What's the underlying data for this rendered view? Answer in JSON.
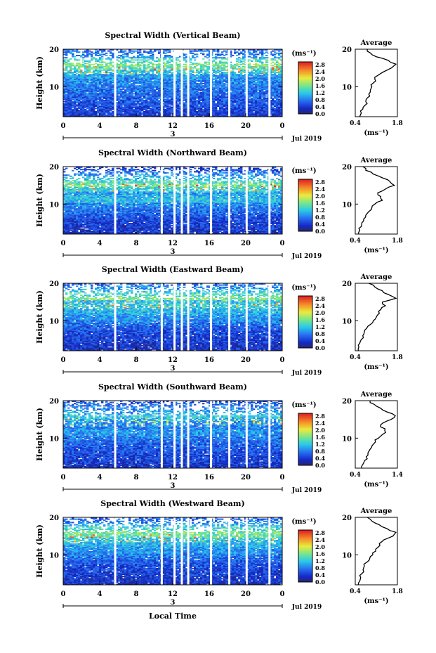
{
  "figure": {
    "xlabel": "Local Time",
    "ylabel": "Height (km)",
    "date_label": "Jul 2019",
    "day_label": "3",
    "x_ticks": [
      "0",
      "4",
      "8",
      "12",
      "16",
      "20",
      "0"
    ],
    "y_ticks": [
      "20",
      "10"
    ],
    "colorbar_unit": "(ms⁻¹)",
    "colorbar_ticks": [
      "2.8",
      "2.4",
      "2.0",
      "1.6",
      "1.2",
      "0.8",
      "0.4",
      "0.0"
    ],
    "avg_title": "Average",
    "avg_xlabel": "(ms⁻¹)"
  },
  "chart_data": [
    {
      "type": "heatmap",
      "title": "Spectral Width (Vertical Beam)",
      "xlabel": "Local Time",
      "ylabel": "Height (km)",
      "xlim": [
        0,
        24
      ],
      "ylim": [
        2,
        20
      ],
      "color_range": [
        0.0,
        2.8
      ],
      "profile": {
        "title": "Average",
        "xlim": [
          0.4,
          1.8
        ],
        "x_ticks": [
          "0.4",
          "1.8"
        ],
        "height": [
          2,
          3,
          4,
          5,
          6,
          7,
          8,
          9,
          10,
          11,
          12,
          13,
          14,
          15,
          16,
          17,
          18,
          19,
          20
        ],
        "values": [
          0.55,
          0.6,
          0.65,
          0.72,
          0.75,
          0.8,
          0.85,
          0.9,
          0.95,
          1.0,
          1.05,
          1.15,
          1.35,
          1.6,
          1.75,
          1.5,
          1.1,
          0.9,
          0.8
        ]
      }
    },
    {
      "type": "heatmap",
      "title": "Spectral Width (Northward Beam)",
      "xlabel": "Local Time",
      "ylabel": "Height (km)",
      "xlim": [
        0,
        24
      ],
      "ylim": [
        2,
        20
      ],
      "color_range": [
        0.0,
        2.8
      ],
      "profile": {
        "title": "Average",
        "xlim": [
          0.4,
          1.8
        ],
        "x_ticks": [
          "0.4",
          "1.8"
        ],
        "height": [
          2,
          3,
          4,
          5,
          6,
          7,
          8,
          9,
          10,
          11,
          12,
          13,
          14,
          15,
          16,
          17,
          18,
          19,
          20
        ],
        "values": [
          0.5,
          0.55,
          0.6,
          0.62,
          0.68,
          0.75,
          0.85,
          0.95,
          1.05,
          1.3,
          1.25,
          1.15,
          1.4,
          1.7,
          1.55,
          1.3,
          1.0,
          0.75,
          0.65
        ]
      }
    },
    {
      "type": "heatmap",
      "title": "Spectral Width (Eastward Beam)",
      "xlabel": "Local Time",
      "ylabel": "Height (km)",
      "xlim": [
        0,
        24
      ],
      "ylim": [
        2,
        20
      ],
      "color_range": [
        0.0,
        2.8
      ],
      "profile": {
        "title": "Average",
        "xlim": [
          0.4,
          1.8
        ],
        "x_ticks": [
          "0.4",
          "1.8"
        ],
        "height": [
          2,
          3,
          4,
          5,
          6,
          7,
          8,
          9,
          10,
          11,
          12,
          13,
          14,
          15,
          16,
          17,
          18,
          19,
          20
        ],
        "values": [
          0.5,
          0.52,
          0.55,
          0.6,
          0.65,
          0.7,
          0.78,
          0.9,
          1.0,
          1.1,
          1.2,
          1.25,
          1.4,
          1.3,
          1.75,
          1.5,
          1.3,
          1.05,
          0.85
        ]
      }
    },
    {
      "type": "heatmap",
      "title": "Spectral Width (Southward Beam)",
      "xlabel": "Local Time",
      "ylabel": "Height (km)",
      "xlim": [
        0,
        24
      ],
      "ylim": [
        2,
        20
      ],
      "color_range": [
        0.0,
        2.8
      ],
      "profile": {
        "title": "Average",
        "xlim": [
          0.4,
          1.4
        ],
        "x_ticks": [
          "0.4",
          "1.4"
        ],
        "height": [
          2,
          3,
          4,
          5,
          6,
          7,
          8,
          9,
          10,
          11,
          12,
          13,
          14,
          15,
          16,
          17,
          18,
          19,
          20
        ],
        "values": [
          0.55,
          0.58,
          0.62,
          0.66,
          0.7,
          0.75,
          0.8,
          0.88,
          0.95,
          1.05,
          1.1,
          1.0,
          1.05,
          1.25,
          1.35,
          1.15,
          1.0,
          0.85,
          0.75
        ]
      }
    },
    {
      "type": "heatmap",
      "title": "Spectral Width (Westward Beam)",
      "xlabel": "Local Time",
      "ylabel": "Height (km)",
      "xlim": [
        0,
        24
      ],
      "ylim": [
        2,
        20
      ],
      "color_range": [
        0.0,
        2.8
      ],
      "profile": {
        "title": "Average",
        "xlim": [
          0.4,
          1.8
        ],
        "x_ticks": [
          "0.4",
          "1.8"
        ],
        "height": [
          2,
          3,
          4,
          5,
          6,
          7,
          8,
          9,
          10,
          11,
          12,
          13,
          14,
          15,
          16,
          17,
          18,
          19,
          20
        ],
        "values": [
          0.5,
          0.55,
          0.58,
          0.62,
          0.66,
          0.7,
          0.78,
          0.88,
          0.98,
          1.08,
          1.15,
          1.2,
          1.35,
          1.65,
          1.75,
          1.45,
          1.2,
          0.95,
          0.8
        ]
      }
    }
  ]
}
